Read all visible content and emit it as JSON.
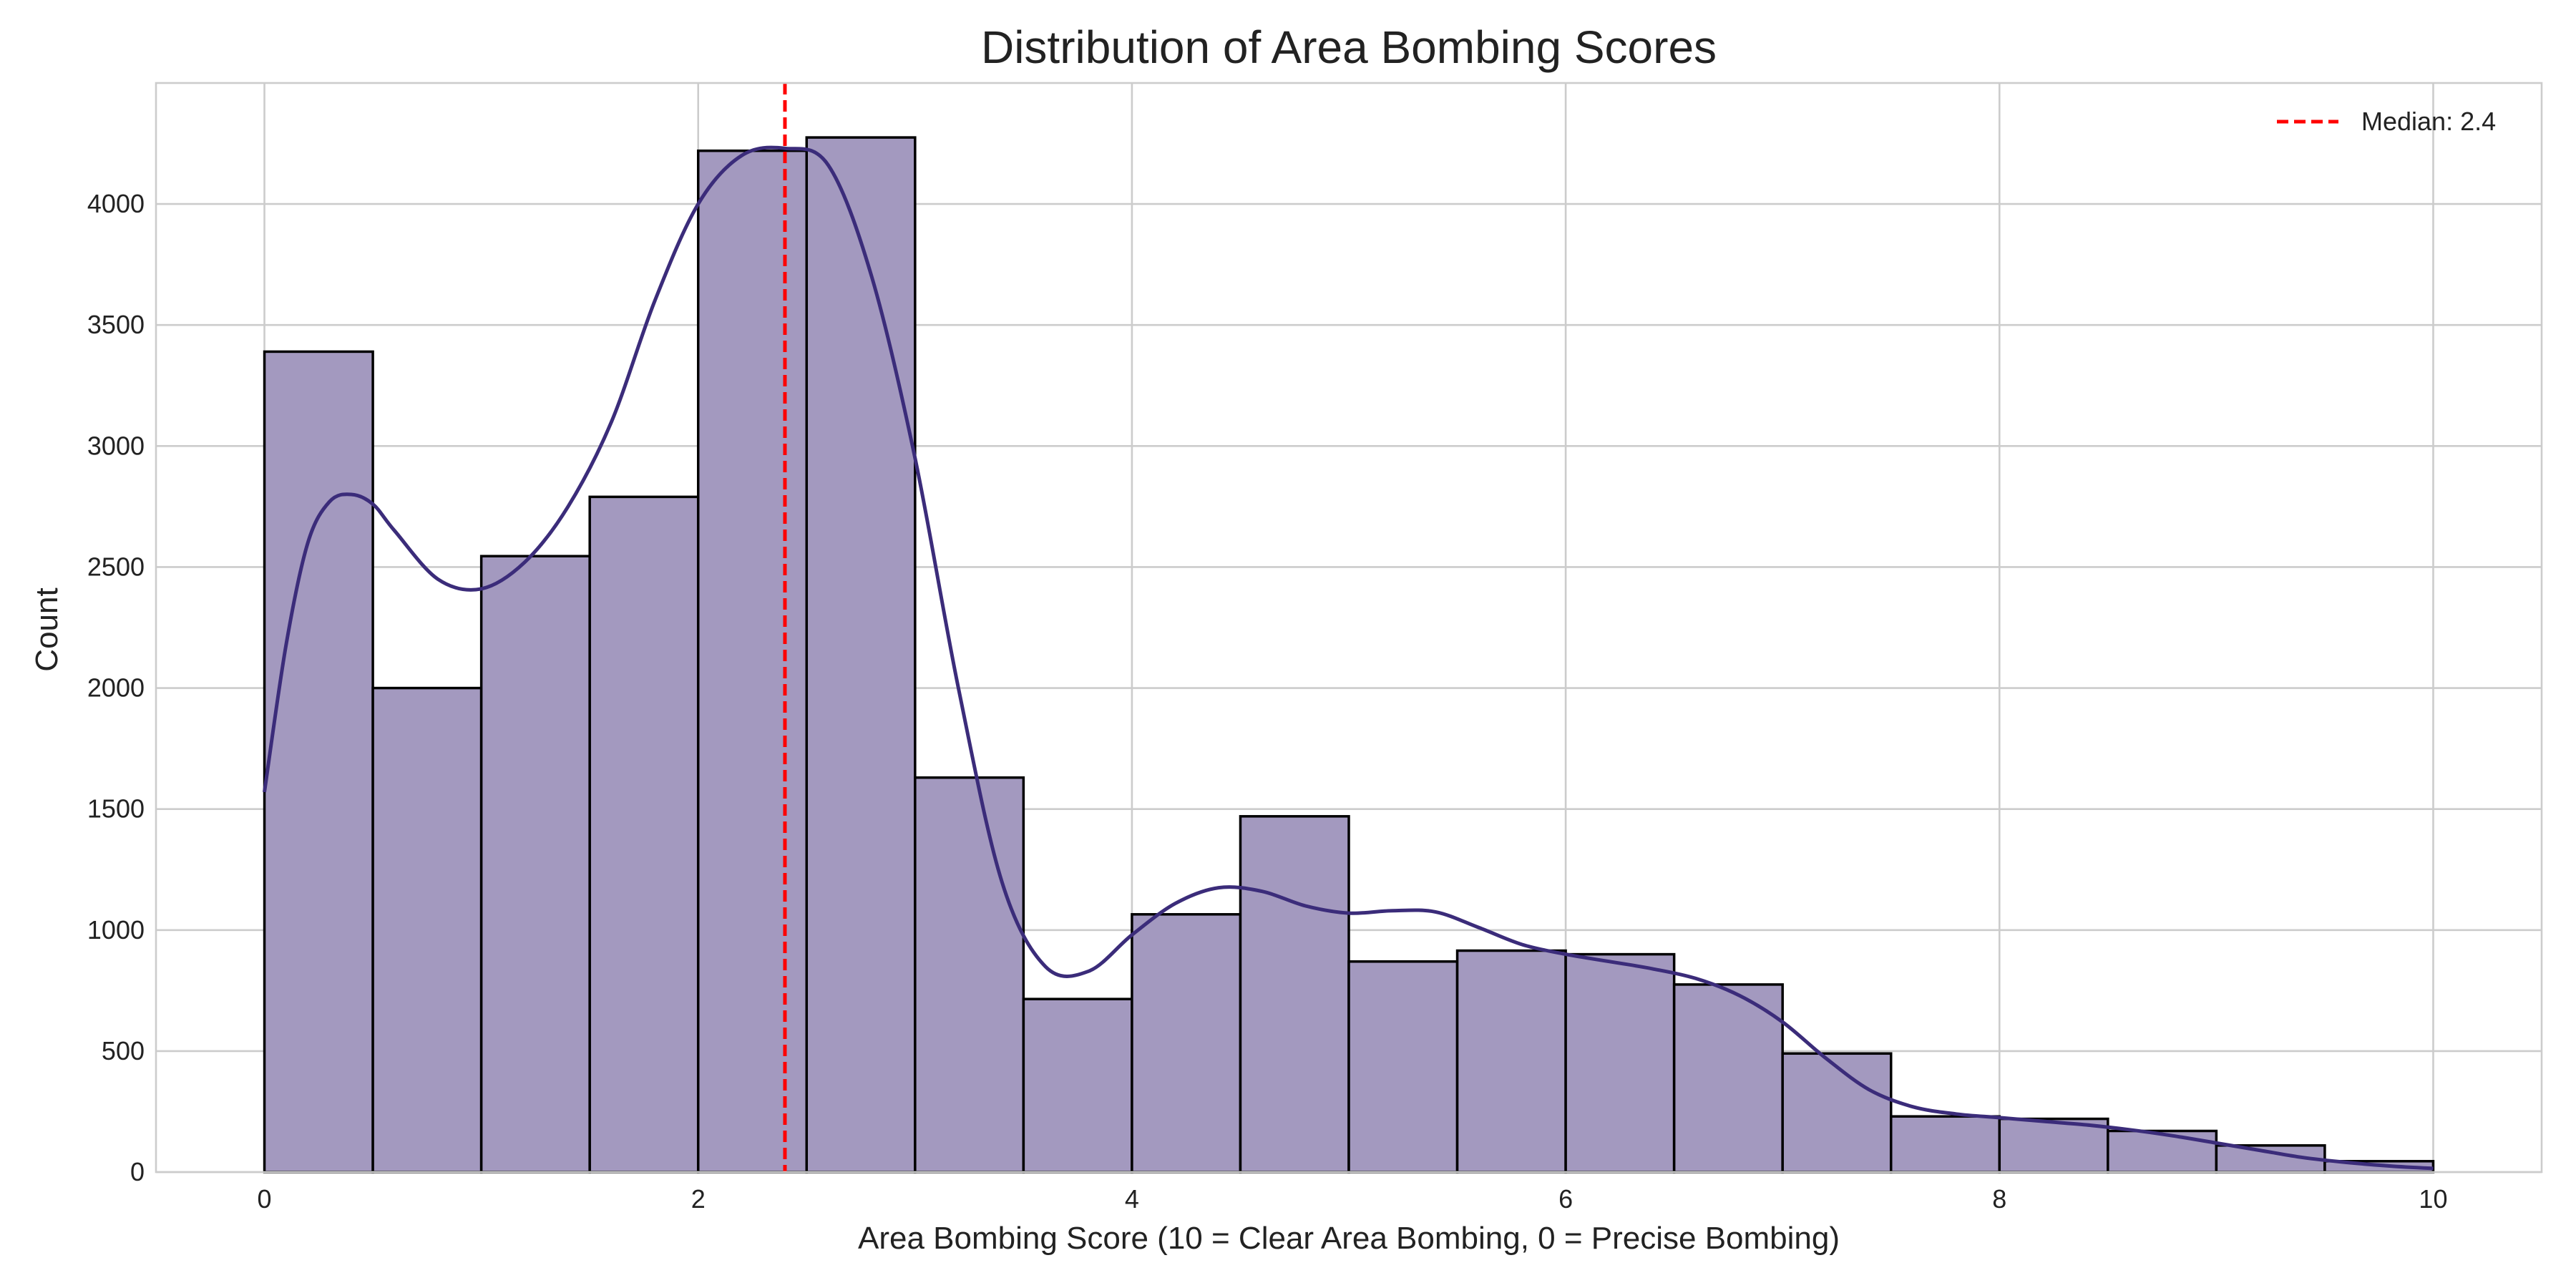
{
  "chart_data": {
    "type": "bar",
    "title": "Distribution of Area Bombing Scores",
    "xlabel": "Area Bombing Score (10 = Clear Area Bombing, 0 = Precise Bombing)",
    "ylabel": "Count",
    "xlim": [
      -0.5,
      10.5
    ],
    "ylim": [
      0,
      4500
    ],
    "xticks": [
      0,
      2,
      4,
      6,
      8,
      10
    ],
    "yticks": [
      0,
      500,
      1000,
      1500,
      2000,
      2500,
      3000,
      3500,
      4000
    ],
    "grid": true,
    "bin_width": 0.5,
    "bins": [
      {
        "start": 0.0,
        "end": 0.5,
        "count": 3390
      },
      {
        "start": 0.5,
        "end": 1.0,
        "count": 2000
      },
      {
        "start": 1.0,
        "end": 1.5,
        "count": 2545
      },
      {
        "start": 1.5,
        "end": 2.0,
        "count": 2790
      },
      {
        "start": 2.0,
        "end": 2.5,
        "count": 4220
      },
      {
        "start": 2.5,
        "end": 3.0,
        "count": 4275
      },
      {
        "start": 3.0,
        "end": 3.5,
        "count": 1630
      },
      {
        "start": 3.5,
        "end": 4.0,
        "count": 715
      },
      {
        "start": 4.0,
        "end": 4.5,
        "count": 1065
      },
      {
        "start": 4.5,
        "end": 5.0,
        "count": 1470
      },
      {
        "start": 5.0,
        "end": 5.5,
        "count": 870
      },
      {
        "start": 5.5,
        "end": 6.0,
        "count": 915
      },
      {
        "start": 6.0,
        "end": 6.5,
        "count": 900
      },
      {
        "start": 6.5,
        "end": 7.0,
        "count": 775
      },
      {
        "start": 7.0,
        "end": 7.5,
        "count": 490
      },
      {
        "start": 7.5,
        "end": 8.0,
        "count": 230
      },
      {
        "start": 8.0,
        "end": 8.5,
        "count": 220
      },
      {
        "start": 8.5,
        "end": 9.0,
        "count": 170
      },
      {
        "start": 9.0,
        "end": 9.5,
        "count": 110
      },
      {
        "start": 9.5,
        "end": 10.0,
        "count": 45
      }
    ],
    "kde_curve": {
      "x": [
        0.0,
        0.1,
        0.2,
        0.3,
        0.4,
        0.5,
        0.6,
        0.8,
        1.0,
        1.2,
        1.4,
        1.6,
        1.8,
        2.0,
        2.2,
        2.4,
        2.6,
        2.8,
        3.0,
        3.2,
        3.4,
        3.6,
        3.8,
        4.0,
        4.2,
        4.4,
        4.6,
        4.8,
        5.0,
        5.2,
        5.4,
        5.6,
        5.8,
        6.0,
        6.2,
        6.4,
        6.6,
        6.8,
        7.0,
        7.2,
        7.4,
        7.6,
        7.8,
        8.0,
        8.2,
        8.4,
        8.6,
        8.8,
        9.0,
        9.2,
        9.4,
        9.6,
        9.8,
        10.0
      ],
      "y": [
        1570,
        2180,
        2600,
        2770,
        2800,
        2760,
        2650,
        2450,
        2410,
        2520,
        2750,
        3100,
        3600,
        4000,
        4200,
        4230,
        4160,
        3700,
        2950,
        2000,
        1200,
        850,
        830,
        980,
        1110,
        1175,
        1160,
        1100,
        1070,
        1080,
        1075,
        1010,
        940,
        900,
        870,
        840,
        800,
        730,
        620,
        470,
        340,
        270,
        240,
        225,
        210,
        195,
        175,
        150,
        120,
        90,
        60,
        40,
        25,
        15
      ]
    },
    "median_line": {
      "value": 2.4,
      "label": "Median: 2.4",
      "color": "#ff0000",
      "style": "dashed"
    },
    "legend": {
      "position": "top-right",
      "entries": [
        "Median: 2.4"
      ]
    },
    "colors": {
      "bar_fill": "#a399bf",
      "bar_edge": "#000000",
      "kde_line": "#3b2c7a",
      "median": "#ff0000",
      "grid": "#cccccc",
      "spine": "#cccccc"
    }
  }
}
